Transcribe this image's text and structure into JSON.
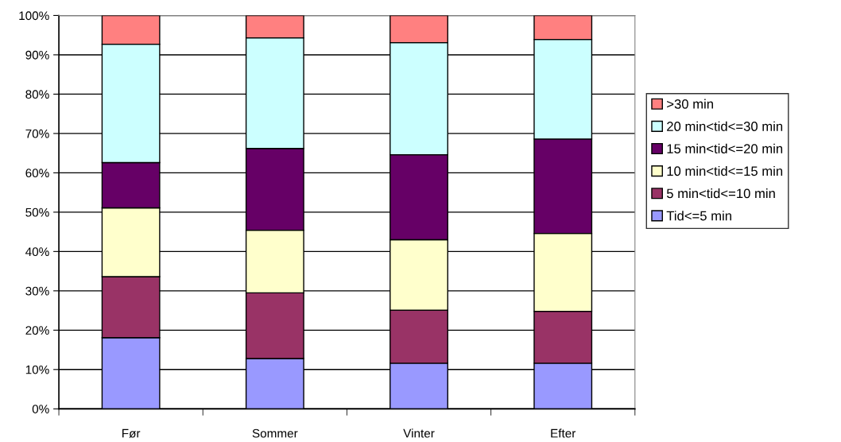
{
  "chart_data": {
    "type": "bar",
    "stacked": true,
    "categories": [
      "Før",
      "Sommer",
      "Vinter",
      "Efter"
    ],
    "series": [
      {
        "name": "Tid<=5 min",
        "color": "#9999ff",
        "values": [
          18.1,
          12.8,
          11.6,
          11.6
        ]
      },
      {
        "name": "5 min<tid<=10 min",
        "color": "#993366",
        "values": [
          15.5,
          16.7,
          13.5,
          13.2
        ]
      },
      {
        "name": "10 min<tid<=15 min",
        "color": "#ffffcc",
        "values": [
          17.5,
          15.9,
          17.9,
          19.8
        ]
      },
      {
        "name": "15 min<tid<=20 min",
        "color": "#660066",
        "values": [
          11.5,
          20.8,
          21.6,
          24.0
        ]
      },
      {
        "name": "20 min<tid<=30 min",
        "color": "#ccffff",
        "values": [
          30.1,
          28.1,
          28.5,
          25.3
        ]
      },
      {
        "name": ">30 min",
        "color": "#ff8080",
        "values": [
          7.3,
          5.7,
          6.9,
          6.1
        ]
      }
    ],
    "ylim": [
      0,
      100
    ],
    "yticks": [
      {
        "value": 0,
        "label": "0%"
      },
      {
        "value": 10,
        "label": "10%"
      },
      {
        "value": 20,
        "label": "20%"
      },
      {
        "value": 30,
        "label": "30%"
      },
      {
        "value": 40,
        "label": "40%"
      },
      {
        "value": 50,
        "label": "50%"
      },
      {
        "value": 60,
        "label": "60%"
      },
      {
        "value": 70,
        "label": "70%"
      },
      {
        "value": 80,
        "label": "80%"
      },
      {
        "value": 90,
        "label": "90%"
      },
      {
        "value": 100,
        "label": "100%"
      }
    ],
    "grid": "y",
    "legend": "right"
  }
}
